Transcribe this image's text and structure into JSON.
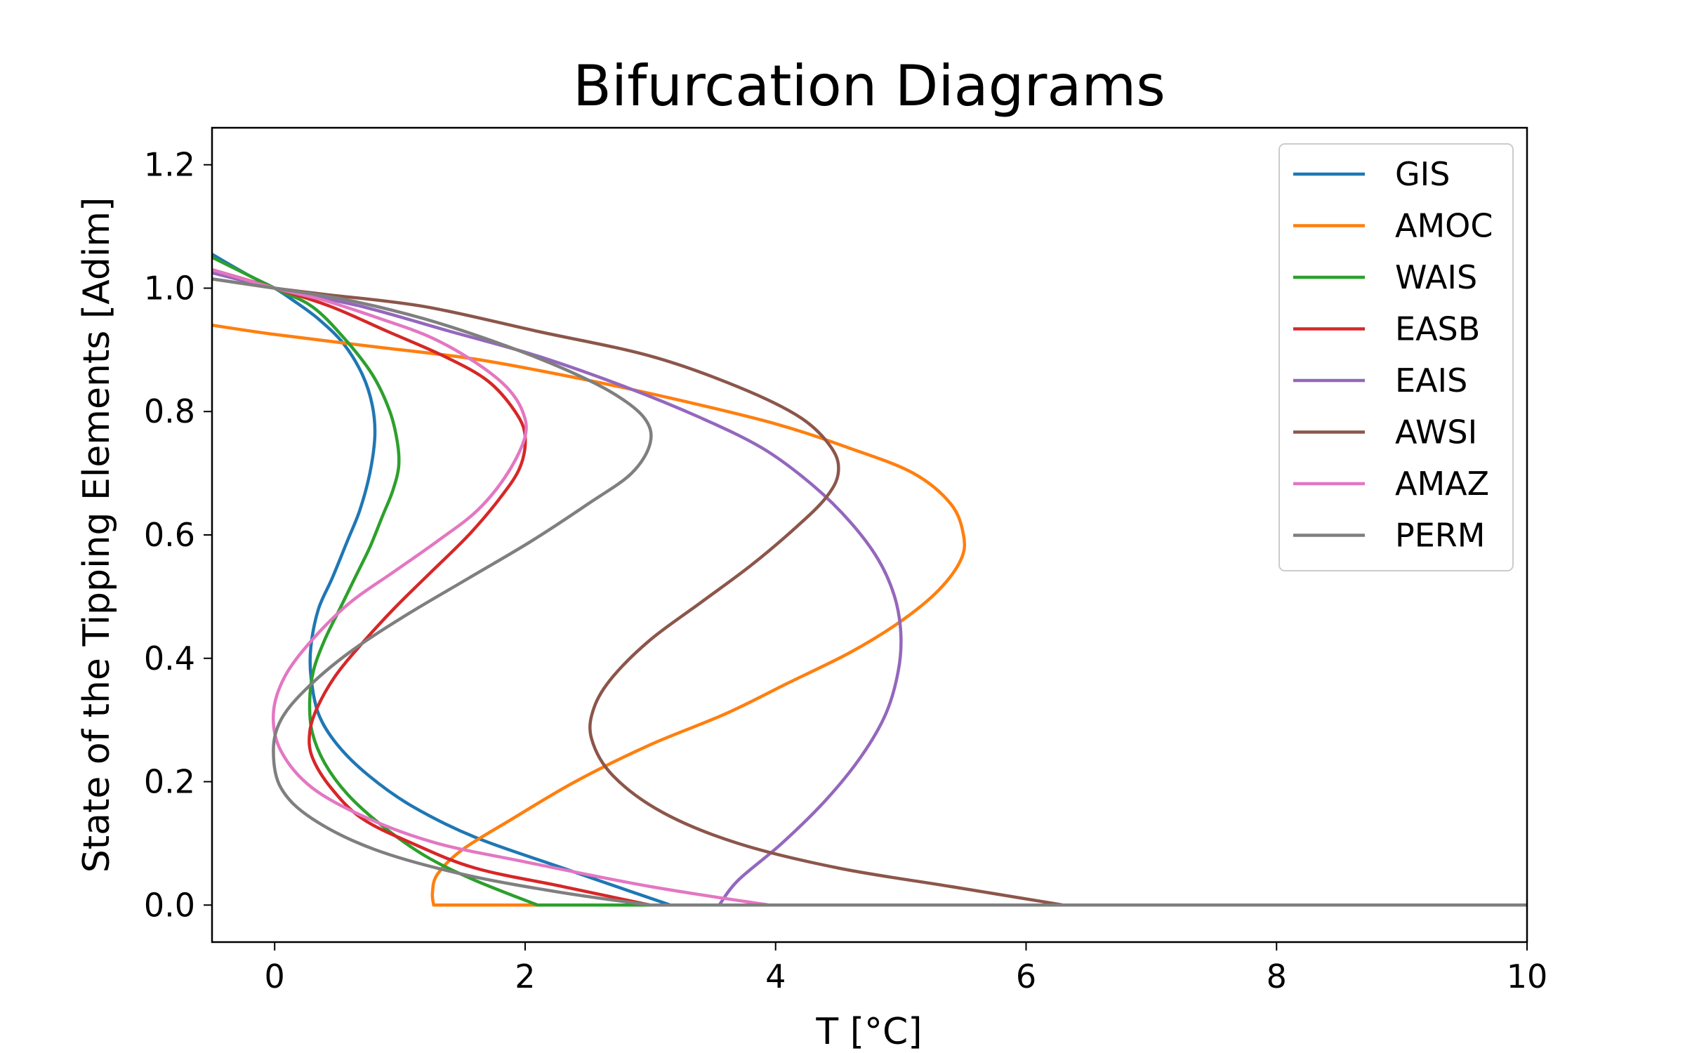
{
  "chart_data": {
    "type": "line",
    "title": "Bifurcation Diagrams",
    "xlabel": "T [°C]",
    "ylabel": "State of the Tipping Elements [Adim]",
    "xlim": [
      -0.5,
      10
    ],
    "ylim": [
      -0.06,
      1.26
    ],
    "xticks": [
      0,
      2,
      4,
      6,
      8,
      10
    ],
    "yticks": [
      0.0,
      0.2,
      0.4,
      0.6,
      0.8,
      1.0,
      1.2
    ],
    "grid": false,
    "legend_position": "top-right",
    "series": [
      {
        "name": "GIS",
        "color": "#1f77b4",
        "x": [
          10.0,
          3.16,
          2.3,
          1.6,
          1.1,
          0.75,
          0.5,
          0.35,
          0.29,
          0.29,
          0.35,
          0.46,
          0.58,
          0.68,
          0.76,
          0.8,
          0.78,
          0.7,
          0.55,
          0.35,
          0.15,
          0.0,
          -0.2,
          -0.5
        ],
        "y": [
          0.0,
          0.0,
          0.06,
          0.11,
          0.16,
          0.21,
          0.26,
          0.31,
          0.37,
          0.42,
          0.48,
          0.53,
          0.59,
          0.64,
          0.7,
          0.76,
          0.81,
          0.86,
          0.91,
          0.95,
          0.98,
          1.0,
          1.02,
          1.055
        ]
      },
      {
        "name": "AMOC",
        "color": "#ff7f0e",
        "x": [
          10.0,
          1.27,
          1.26,
          1.3,
          1.5,
          1.9,
          2.4,
          3.0,
          3.6,
          4.1,
          4.6,
          5.0,
          5.3,
          5.48,
          5.5,
          5.4,
          5.1,
          4.6,
          4.0,
          3.2,
          2.4,
          1.6,
          0.8,
          0.0,
          -0.5
        ],
        "y": [
          0.0,
          0.0,
          0.02,
          0.05,
          0.09,
          0.14,
          0.2,
          0.26,
          0.31,
          0.36,
          0.41,
          0.46,
          0.51,
          0.56,
          0.6,
          0.65,
          0.7,
          0.74,
          0.78,
          0.82,
          0.855,
          0.885,
          0.905,
          0.925,
          0.94
        ]
      },
      {
        "name": "WAIS",
        "color": "#2ca02c",
        "x": [
          10.0,
          2.1,
          1.6,
          1.2,
          0.85,
          0.58,
          0.4,
          0.3,
          0.28,
          0.31,
          0.4,
          0.52,
          0.64,
          0.76,
          0.86,
          0.94,
          0.99,
          0.98,
          0.92,
          0.78,
          0.55,
          0.3,
          0.0,
          -0.5
        ],
        "y": [
          0.0,
          0.0,
          0.04,
          0.08,
          0.13,
          0.18,
          0.23,
          0.28,
          0.33,
          0.38,
          0.43,
          0.48,
          0.53,
          0.58,
          0.63,
          0.67,
          0.71,
          0.75,
          0.8,
          0.86,
          0.92,
          0.97,
          1.0,
          1.05
        ]
      },
      {
        "name": "EASB",
        "color": "#d62728",
        "x": [
          10.0,
          3.0,
          2.3,
          1.6,
          1.1,
          0.7,
          0.45,
          0.3,
          0.28,
          0.34,
          0.48,
          0.68,
          0.95,
          1.25,
          1.55,
          1.8,
          1.96,
          2.0,
          1.92,
          1.7,
          1.35,
          0.9,
          0.45,
          0.0,
          -0.5
        ],
        "y": [
          0.0,
          0.0,
          0.03,
          0.06,
          0.1,
          0.14,
          0.19,
          0.24,
          0.28,
          0.32,
          0.37,
          0.42,
          0.48,
          0.54,
          0.6,
          0.66,
          0.71,
          0.76,
          0.8,
          0.85,
          0.89,
          0.93,
          0.97,
          1.0,
          1.03
        ]
      },
      {
        "name": "EAIS",
        "color": "#9467bd",
        "x": [
          10.0,
          3.55,
          3.7,
          4.05,
          4.4,
          4.68,
          4.88,
          4.98,
          5.0,
          4.95,
          4.82,
          4.6,
          4.3,
          3.9,
          3.4,
          2.8,
          2.1,
          1.4,
          0.7,
          0.0,
          -0.5
        ],
        "y": [
          0.0,
          0.0,
          0.04,
          0.1,
          0.17,
          0.24,
          0.31,
          0.38,
          0.44,
          0.5,
          0.56,
          0.62,
          0.68,
          0.74,
          0.79,
          0.84,
          0.89,
          0.93,
          0.97,
          1.0,
          1.025
        ]
      },
      {
        "name": "AWSI",
        "color": "#8c564b",
        "x": [
          10.0,
          6.3,
          5.4,
          4.5,
          3.7,
          3.1,
          2.7,
          2.53,
          2.55,
          2.7,
          3.0,
          3.4,
          3.8,
          4.15,
          4.4,
          4.5,
          4.45,
          4.2,
          3.7,
          3.0,
          2.1,
          1.2,
          0.4,
          0.0,
          -0.5
        ],
        "y": [
          0.0,
          0.0,
          0.03,
          0.06,
          0.1,
          0.15,
          0.21,
          0.27,
          0.32,
          0.37,
          0.43,
          0.49,
          0.55,
          0.61,
          0.66,
          0.7,
          0.74,
          0.79,
          0.84,
          0.89,
          0.93,
          0.97,
          0.99,
          1.0,
          1.015
        ]
      },
      {
        "name": "AMAZ",
        "color": "#e377c2",
        "x": [
          10.0,
          3.95,
          3.0,
          2.0,
          1.3,
          0.75,
          0.3,
          0.05,
          -0.01,
          0.08,
          0.3,
          0.6,
          0.95,
          1.3,
          1.62,
          1.86,
          2.0,
          1.98,
          1.85,
          1.6,
          1.25,
          0.85,
          0.4,
          0.0,
          -0.5
        ],
        "y": [
          0.0,
          0.0,
          0.03,
          0.07,
          0.1,
          0.14,
          0.19,
          0.25,
          0.31,
          0.37,
          0.43,
          0.49,
          0.54,
          0.59,
          0.64,
          0.7,
          0.76,
          0.8,
          0.84,
          0.88,
          0.92,
          0.95,
          0.98,
          1.0,
          1.03
        ]
      },
      {
        "name": "PERM",
        "color": "#7f7f7f",
        "x": [
          10.0,
          3.0,
          2.3,
          1.5,
          0.8,
          0.3,
          0.05,
          -0.01,
          0.05,
          0.25,
          0.6,
          1.05,
          1.55,
          2.05,
          2.5,
          2.85,
          3.0,
          2.95,
          2.7,
          2.3,
          1.8,
          1.2,
          0.6,
          0.0,
          -0.5
        ],
        "y": [
          0.0,
          0.0,
          0.02,
          0.05,
          0.09,
          0.14,
          0.19,
          0.25,
          0.3,
          0.35,
          0.41,
          0.47,
          0.53,
          0.59,
          0.65,
          0.7,
          0.75,
          0.79,
          0.83,
          0.87,
          0.91,
          0.95,
          0.98,
          1.0,
          1.015
        ]
      }
    ]
  }
}
